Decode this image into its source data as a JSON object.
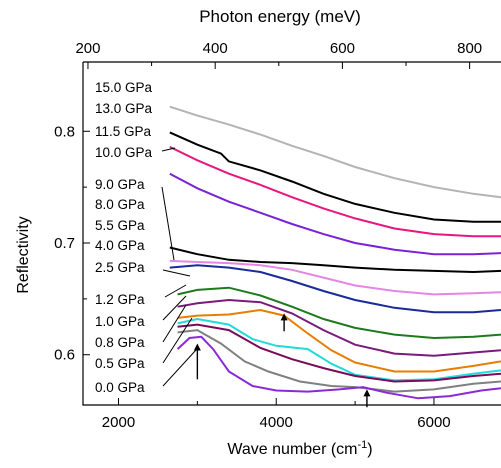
{
  "chart_data": {
    "type": "line",
    "title": "",
    "xlabel": "Wave number (cm",
    "xlabel_sup": "-1",
    "xlabel_tail": ")",
    "x2label": "Photon energy (meV)",
    "ylabel": "Reflectivity",
    "xlim": [
      1550,
      6850
    ],
    "ylim": [
      0.555,
      0.862
    ],
    "x2lim": [
      192.2,
      849.3
    ],
    "xticks": [
      2000,
      4000,
      6000
    ],
    "xtick_labels": [
      "2000",
      "4000",
      "6000"
    ],
    "x2ticks": [
      200,
      400,
      600,
      800
    ],
    "x2tick_labels": [
      "200",
      "400",
      "600",
      "800"
    ],
    "yticks": [
      0.6,
      0.7,
      0.8
    ],
    "ytick_labels": [
      "0.6",
      "0.7",
      "0.8"
    ],
    "grid": false,
    "legend": "left, inline labels with leader lines",
    "series": [
      {
        "name": "15.0 GPa",
        "color": "#b4b4b4",
        "x": [
          2650,
          3000,
          3400,
          3800,
          4200,
          4600,
          5000,
          5500,
          6000,
          6500,
          6850
        ],
        "y": [
          0.822,
          0.814,
          0.806,
          0.797,
          0.787,
          0.778,
          0.768,
          0.758,
          0.75,
          0.744,
          0.741
        ]
      },
      {
        "name": "13.0 GPa",
        "color": "#000000",
        "x": [
          2650,
          3000,
          3300,
          3400,
          3800,
          4200,
          4600,
          5000,
          5500,
          6000,
          6500,
          6850
        ],
        "y": [
          0.799,
          0.788,
          0.78,
          0.773,
          0.765,
          0.755,
          0.744,
          0.735,
          0.727,
          0.721,
          0.719,
          0.719
        ]
      },
      {
        "name": "11.5 GPa",
        "color": "#e8167e",
        "x": [
          2650,
          3000,
          3400,
          3800,
          4200,
          4600,
          5000,
          5500,
          6000,
          6500,
          6850
        ],
        "y": [
          0.786,
          0.774,
          0.762,
          0.752,
          0.741,
          0.731,
          0.722,
          0.713,
          0.708,
          0.706,
          0.706
        ]
      },
      {
        "name": "10.0 GPa",
        "color": "#7a22d6",
        "x": [
          2650,
          3000,
          3400,
          3800,
          4200,
          4600,
          5000,
          5500,
          6000,
          6500,
          6850
        ],
        "y": [
          0.762,
          0.749,
          0.737,
          0.727,
          0.717,
          0.708,
          0.7,
          0.694,
          0.69,
          0.69,
          0.691
        ]
      },
      {
        "name": "9.0 GPa",
        "color": "#000000",
        "x": [
          2650,
          3000,
          3400,
          3800,
          4200,
          4600,
          5000,
          5500,
          6000,
          6500,
          6850
        ],
        "y": [
          0.696,
          0.69,
          0.685,
          0.683,
          0.682,
          0.68,
          0.678,
          0.676,
          0.675,
          0.674,
          0.675
        ]
      },
      {
        "name": "8.0 GPa",
        "color": "#e486e4",
        "x": [
          2650,
          3000,
          3400,
          3800,
          4200,
          4600,
          5000,
          5500,
          6000,
          6500,
          6850
        ],
        "y": [
          0.684,
          0.683,
          0.682,
          0.68,
          0.676,
          0.669,
          0.662,
          0.657,
          0.654,
          0.655,
          0.656
        ]
      },
      {
        "name": "5.5 GPa",
        "color": "#1a2a9a",
        "x": [
          2650,
          3000,
          3400,
          3800,
          4200,
          4600,
          5000,
          5500,
          6000,
          6500,
          6850
        ],
        "y": [
          0.678,
          0.68,
          0.678,
          0.674,
          0.666,
          0.657,
          0.649,
          0.642,
          0.638,
          0.638,
          0.64
        ]
      },
      {
        "name": "4.0 GPa",
        "color": "#1e7a1e",
        "x": [
          2750,
          3000,
          3400,
          3800,
          4200,
          4600,
          5000,
          5500,
          6000,
          6500,
          6850
        ],
        "y": [
          0.654,
          0.658,
          0.66,
          0.653,
          0.643,
          0.632,
          0.624,
          0.618,
          0.615,
          0.616,
          0.618
        ]
      },
      {
        "name": "2.5 GPa",
        "color": "#7a1a7a",
        "x": [
          2750,
          3000,
          3400,
          3800,
          4200,
          4600,
          5000,
          5500,
          6000,
          6500,
          6850
        ],
        "y": [
          0.643,
          0.646,
          0.649,
          0.647,
          0.637,
          0.622,
          0.609,
          0.601,
          0.599,
          0.602,
          0.604
        ]
      },
      {
        "name": "1.2 GPa",
        "color": "#e87e00",
        "x": [
          2750,
          3000,
          3400,
          3800,
          4100,
          4400,
          4700,
          5000,
          5500,
          6000,
          6500,
          6850
        ],
        "y": [
          0.633,
          0.635,
          0.636,
          0.64,
          0.635,
          0.619,
          0.604,
          0.593,
          0.585,
          0.585,
          0.59,
          0.594
        ]
      },
      {
        "name": "1.0 GPa",
        "color": "#22dada",
        "x": [
          2750,
          3000,
          3400,
          3700,
          4000,
          4400,
          4700,
          5000,
          5500,
          6000,
          6500,
          6850
        ],
        "y": [
          0.628,
          0.632,
          0.627,
          0.614,
          0.608,
          0.605,
          0.592,
          0.582,
          0.577,
          0.578,
          0.583,
          0.586
        ]
      },
      {
        "name": "0.8 GPa",
        "color": "#7a0a5a",
        "x": [
          2750,
          3000,
          3400,
          3800,
          4200,
          4600,
          5000,
          5500,
          6000,
          6500,
          6850
        ],
        "y": [
          0.625,
          0.627,
          0.622,
          0.606,
          0.596,
          0.588,
          0.581,
          0.576,
          0.577,
          0.581,
          0.583
        ]
      },
      {
        "name": "0.5 GPa",
        "color": "#808080",
        "x": [
          2750,
          3000,
          3300,
          3600,
          3900,
          4300,
          4700,
          5000,
          5500,
          6000,
          6500,
          6850
        ],
        "y": [
          0.62,
          0.622,
          0.61,
          0.594,
          0.585,
          0.576,
          0.572,
          0.571,
          0.567,
          0.569,
          0.574,
          0.576
        ]
      },
      {
        "name": "0.0 GPa",
        "color": "#8a2ad6",
        "x": [
          2750,
          2900,
          3050,
          3200,
          3400,
          3700,
          4000,
          4400,
          4800,
          5100,
          5400,
          5800,
          6200,
          6600,
          6850
        ],
        "y": [
          0.605,
          0.615,
          0.616,
          0.605,
          0.585,
          0.572,
          0.568,
          0.567,
          0.569,
          0.571,
          0.566,
          0.561,
          0.563,
          0.568,
          0.57
        ]
      }
    ],
    "label_texts": [
      "15.0 GPa",
      "13.0 GPa",
      "11.5 GPa",
      "10.0 GPa",
      "9.0 GPa",
      "8.0 GPa",
      "5.5 GPa",
      "4.0 GPa",
      "2.5 GPa",
      "1.2 GPa",
      "1.0 GPa",
      "0.8 GPa",
      "0.5 GPa",
      "0.0 GPa"
    ],
    "annotations": [
      {
        "type": "arrow-up",
        "x": 3000,
        "y_tip": 0.61,
        "y_tail": 0.578
      },
      {
        "type": "arrow-up",
        "x": 4100,
        "y_tip": 0.637,
        "y_tail": 0.621
      },
      {
        "type": "arrow-up",
        "x": 5150,
        "y_tip": 0.569,
        "y_tail": 0.553
      }
    ]
  }
}
